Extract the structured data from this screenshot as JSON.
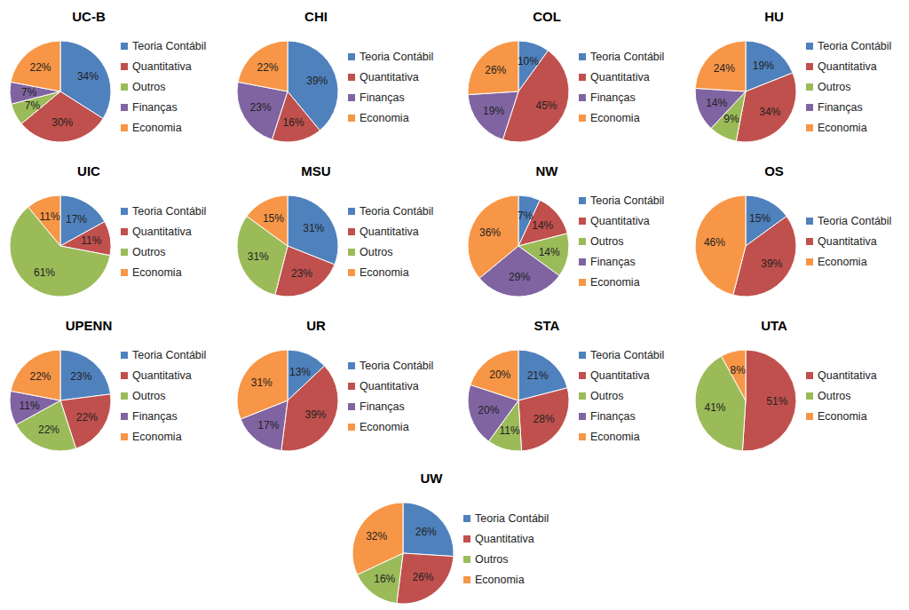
{
  "chart_data": [
    {
      "type": "pie",
      "title": "UC-B",
      "categories": [
        "Teoria Contábil",
        "Quantitativa",
        "Outros",
        "Finanças",
        "Economia"
      ],
      "values": [
        34,
        30,
        7,
        7,
        22
      ],
      "value_labels": [
        "34%",
        "30%",
        "7%",
        "7%",
        "22%"
      ],
      "colors": [
        "#4f81bd",
        "#c0504d",
        "#9bbb59",
        "#8064a2",
        "#f79646"
      ],
      "data_labels": true,
      "legend": "right"
    },
    {
      "type": "pie",
      "title": "CHI",
      "categories": [
        "Teoria Contábil",
        "Quantitativa",
        "Finanças",
        "Economia"
      ],
      "values": [
        39,
        16,
        23,
        22
      ],
      "value_labels": [
        "39%",
        "16%",
        "23%",
        "22%"
      ],
      "colors": [
        "#4f81bd",
        "#c0504d",
        "#8064a2",
        "#f79646"
      ],
      "data_labels": true,
      "legend": "right"
    },
    {
      "type": "pie",
      "title": "COL",
      "categories": [
        "Teoria Contábil",
        "Quantitativa",
        "Finanças",
        "Economia"
      ],
      "values": [
        10,
        45,
        19,
        26
      ],
      "value_labels": [
        "10%",
        "45%",
        "19%",
        "26%"
      ],
      "colors": [
        "#4f81bd",
        "#c0504d",
        "#8064a2",
        "#f79646"
      ],
      "data_labels": true,
      "legend": "right"
    },
    {
      "type": "pie",
      "title": "HU",
      "categories": [
        "Teoria Contábil",
        "Quantitativa",
        "Outros",
        "Finanças",
        "Economia"
      ],
      "values": [
        19,
        34,
        9,
        14,
        24
      ],
      "value_labels": [
        "19%",
        "34%",
        "9%",
        "14%",
        "24%"
      ],
      "colors": [
        "#4f81bd",
        "#c0504d",
        "#9bbb59",
        "#8064a2",
        "#f79646"
      ],
      "data_labels": true,
      "legend": "right"
    },
    {
      "type": "pie",
      "title": "UIC",
      "categories": [
        "Teoria Contábil",
        "Quantitativa",
        "Outros",
        "Economia"
      ],
      "values": [
        17,
        11,
        61,
        11
      ],
      "value_labels": [
        "17%",
        "11%",
        "61%",
        "11%"
      ],
      "colors": [
        "#4f81bd",
        "#c0504d",
        "#9bbb59",
        "#f79646"
      ],
      "data_labels": true,
      "legend": "right"
    },
    {
      "type": "pie",
      "title": "MSU",
      "categories": [
        "Teoria Contábil",
        "Quantitativa",
        "Outros",
        "Economia"
      ],
      "values": [
        31,
        23,
        31,
        15
      ],
      "value_labels": [
        "31%",
        "23%",
        "31%",
        "15%"
      ],
      "colors": [
        "#4f81bd",
        "#c0504d",
        "#9bbb59",
        "#f79646"
      ],
      "data_labels": true,
      "legend": "right"
    },
    {
      "type": "pie",
      "title": "NW",
      "categories": [
        "Teoria Contábil",
        "Quantitativa",
        "Outros",
        "Finanças",
        "Economia"
      ],
      "values": [
        7,
        14,
        14,
        29,
        36
      ],
      "value_labels": [
        "7%",
        "14%",
        "14%",
        "29%",
        "36%"
      ],
      "colors": [
        "#4f81bd",
        "#c0504d",
        "#9bbb59",
        "#8064a2",
        "#f79646"
      ],
      "data_labels": true,
      "legend": "right"
    },
    {
      "type": "pie",
      "title": "OS",
      "categories": [
        "Teoria Contábil",
        "Quantitativa",
        "Economia"
      ],
      "values": [
        15,
        39,
        46
      ],
      "value_labels": [
        "15%",
        "39%",
        "46%"
      ],
      "colors": [
        "#4f81bd",
        "#c0504d",
        "#f79646"
      ],
      "data_labels": true,
      "legend": "right"
    },
    {
      "type": "pie",
      "title": "UPENN",
      "categories": [
        "Teoria Contábil",
        "Quantitativa",
        "Outros",
        "Finanças",
        "Economia"
      ],
      "values": [
        23,
        22,
        22,
        11,
        22
      ],
      "value_labels": [
        "23%",
        "22%",
        "22%",
        "11%",
        "22%"
      ],
      "colors": [
        "#4f81bd",
        "#c0504d",
        "#9bbb59",
        "#8064a2",
        "#f79646"
      ],
      "data_labels": true,
      "legend": "right"
    },
    {
      "type": "pie",
      "title": "UR",
      "categories": [
        "Teoria Contábil",
        "Quantitativa",
        "Finanças",
        "Economia"
      ],
      "values": [
        13,
        39,
        17,
        31
      ],
      "value_labels": [
        "13%",
        "39%",
        "17%",
        "31%"
      ],
      "colors": [
        "#4f81bd",
        "#c0504d",
        "#8064a2",
        "#f79646"
      ],
      "data_labels": true,
      "legend": "right"
    },
    {
      "type": "pie",
      "title": "STA",
      "categories": [
        "Teoria Contábil",
        "Quantitativa",
        "Outros",
        "Finanças",
        "Economia"
      ],
      "values": [
        21,
        28,
        11,
        20,
        20
      ],
      "value_labels": [
        "21%",
        "28%",
        "11%",
        "20%",
        "20%"
      ],
      "colors": [
        "#4f81bd",
        "#c0504d",
        "#9bbb59",
        "#8064a2",
        "#f79646"
      ],
      "data_labels": true,
      "legend": "right"
    },
    {
      "type": "pie",
      "title": "UTA",
      "categories": [
        "Quantitativa",
        "Outros",
        "Economia"
      ],
      "values": [
        51,
        41,
        8
      ],
      "value_labels": [
        "51%",
        "41%",
        "8%"
      ],
      "colors": [
        "#c0504d",
        "#9bbb59",
        "#f79646"
      ],
      "data_labels": true,
      "legend": "right"
    },
    {
      "type": "pie",
      "title": "UW",
      "categories": [
        "Teoria Contábil",
        "Quantitativa",
        "Outros",
        "Economia"
      ],
      "values": [
        26,
        26,
        16,
        32
      ],
      "value_labels": [
        "26%",
        "26%",
        "16%",
        "32%"
      ],
      "colors": [
        "#4f81bd",
        "#c0504d",
        "#9bbb59",
        "#f79646"
      ],
      "data_labels": true,
      "legend": "right"
    }
  ]
}
